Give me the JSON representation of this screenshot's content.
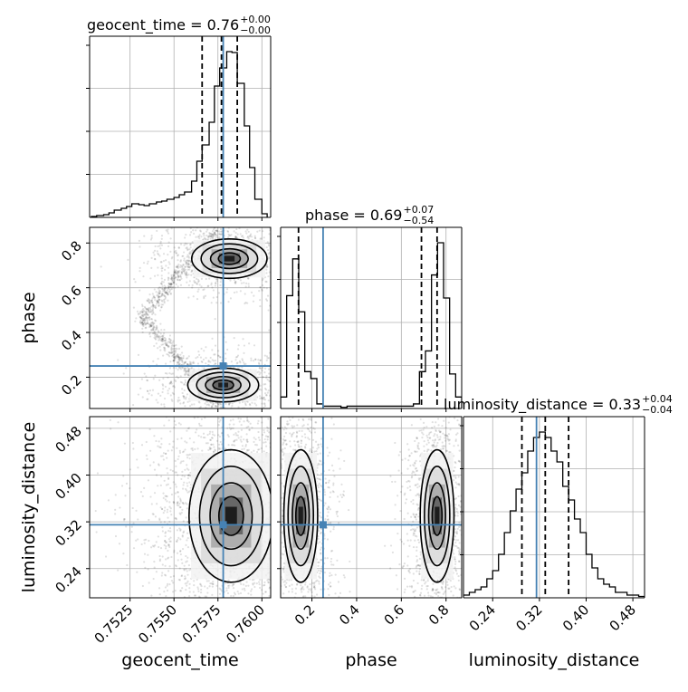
{
  "chart_data": {
    "type": "corner",
    "parameters": [
      "geocent_time",
      "phase",
      "luminosity_distance"
    ],
    "truths": {
      "geocent_time": 0.7578,
      "phase": 0.25,
      "luminosity_distance": 0.315
    },
    "truth_color": "#4682b4",
    "ranges": {
      "geocent_time": [
        0.7502,
        0.7605
      ],
      "phase": [
        0.06,
        0.87
      ],
      "luminosity_distance": [
        0.19,
        0.5
      ]
    },
    "ticks": {
      "geocent_time": [
        0.7525,
        0.755,
        0.7575,
        0.76
      ],
      "phase": [
        0.2,
        0.4,
        0.6,
        0.8
      ],
      "luminosity_distance": [
        0.24,
        0.32,
        0.4,
        0.48
      ]
    },
    "tick_labels": {
      "geocent_time": [
        "0.7525",
        "0.7550",
        "0.7575",
        "0.7600"
      ],
      "phase": [
        "0.2",
        "0.4",
        "0.6",
        "0.8"
      ],
      "luminosity_distance": [
        "0.24",
        "0.32",
        "0.40",
        "0.48"
      ]
    },
    "axis_labels": {
      "geocent_time": "geocent_time",
      "phase": "phase",
      "luminosity_distance": "luminosity_distance"
    },
    "titles": [
      {
        "param": "geocent_time",
        "prefix": "geocent_time = 0.76",
        "sup": "+0.00",
        "sub": "−0.00"
      },
      {
        "param": "phase",
        "prefix": "phase = 0.69",
        "sup": "+0.07",
        "sub": "−0.54"
      },
      {
        "param": "luminosity_distance",
        "prefix": "luminosity_distance = 0.33",
        "sup": "+0.04",
        "sub": "−0.04"
      }
    ],
    "quantiles": {
      "geocent_time": [
        0.7566,
        0.7577,
        0.7586
      ],
      "phase": [
        0.14,
        0.69,
        0.76
      ],
      "luminosity_distance": [
        0.29,
        0.33,
        0.37
      ]
    },
    "histograms": {
      "geocent_time": {
        "edges": [
          0.7503,
          0.7506,
          0.751,
          0.7513,
          0.7516,
          0.752,
          0.7523,
          0.7526,
          0.753,
          0.7533,
          0.7536,
          0.754,
          0.7543,
          0.7546,
          0.755,
          0.7553,
          0.7556,
          0.756,
          0.7563,
          0.7566,
          0.757,
          0.7573,
          0.7576,
          0.758,
          0.7583,
          0.7586,
          0.759,
          0.7593,
          0.7596,
          0.76,
          0.7603
        ],
        "counts": [
          1,
          2,
          3,
          5,
          8,
          10,
          12,
          15,
          14,
          13,
          15,
          17,
          18,
          20,
          22,
          25,
          28,
          40,
          62,
          80,
          105,
          145,
          165,
          183,
          182,
          148,
          101,
          55,
          20,
          4
        ]
      },
      "phase": {
        "edges": [
          0.06,
          0.087,
          0.114,
          0.141,
          0.168,
          0.195,
          0.222,
          0.249,
          0.276,
          0.303,
          0.33,
          0.357,
          0.384,
          0.411,
          0.438,
          0.465,
          0.492,
          0.519,
          0.546,
          0.573,
          0.6,
          0.627,
          0.654,
          0.681,
          0.708,
          0.735,
          0.762,
          0.789,
          0.816,
          0.843,
          0.87
        ],
        "counts": [
          5,
          49,
          65,
          42,
          16,
          13,
          2,
          1,
          1,
          1,
          0.5,
          1,
          1,
          1,
          1,
          1,
          1,
          1,
          1,
          1,
          1,
          1,
          2,
          16,
          25,
          58,
          72,
          48,
          15,
          5
        ]
      },
      "luminosity_distance": {
        "edges": [
          0.19,
          0.2,
          0.21,
          0.22,
          0.23,
          0.24,
          0.25,
          0.26,
          0.27,
          0.28,
          0.29,
          0.3,
          0.31,
          0.32,
          0.33,
          0.34,
          0.35,
          0.36,
          0.37,
          0.38,
          0.39,
          0.4,
          0.41,
          0.42,
          0.43,
          0.44,
          0.45,
          0.46,
          0.47,
          0.48,
          0.49,
          0.5
        ],
        "counts": [
          2,
          4,
          6,
          8,
          14,
          20,
          32,
          48,
          64,
          80,
          92,
          108,
          118,
          122,
          118,
          108,
          100,
          82,
          72,
          58,
          48,
          32,
          22,
          14,
          10,
          8,
          4,
          4,
          2,
          2,
          1
        ]
      }
    },
    "modes_2d": {
      "geocent_time_vs_phase": [
        {
          "x": 0.75815,
          "y": 0.73,
          "sx": 0.00085,
          "sy": 0.035
        },
        {
          "x": 0.7578,
          "y": 0.165,
          "sx": 0.0008,
          "sy": 0.03
        }
      ],
      "geocent_time_vs_luminosity_distance": [
        {
          "x": 0.75825,
          "y": 0.33,
          "sx": 0.00095,
          "sy": 0.045
        }
      ],
      "phase_vs_luminosity_distance": [
        {
          "x": 0.15,
          "y": 0.33,
          "sx": 0.03,
          "sy": 0.045
        },
        {
          "x": 0.76,
          "y": 0.33,
          "sx": 0.03,
          "sy": 0.045
        }
      ]
    }
  }
}
